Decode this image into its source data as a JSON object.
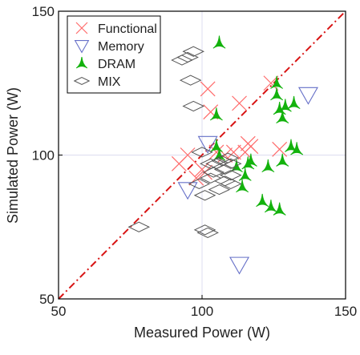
{
  "colors": {
    "functional": "#ff6b6b",
    "memory": "#6670c8",
    "dram": "#13b20d",
    "mix": "#555555",
    "diagonal": "#d81414",
    "grid": "#dcdcf0",
    "axis": "#000000"
  },
  "chart_data": {
    "type": "scatter",
    "xlabel": "Measured Power (W)",
    "ylabel": "Simulated Power (W)",
    "xlim": [
      50,
      150
    ],
    "ylim": [
      50,
      150
    ],
    "xticks": [
      "50",
      "100",
      "150"
    ],
    "yticks": [
      "50",
      "100",
      "150"
    ],
    "grid": true,
    "legend_position": "top-left",
    "reference_line": "y = x",
    "series": [
      {
        "name": "Functional",
        "marker": "x",
        "points": [
          [
            92,
            97
          ],
          [
            95,
            100
          ],
          [
            98,
            92
          ],
          [
            100,
            95
          ],
          [
            101,
            94
          ],
          [
            102,
            123
          ],
          [
            103,
            115
          ],
          [
            105,
            101
          ],
          [
            108,
            100
          ],
          [
            111,
            101
          ],
          [
            113,
            118
          ],
          [
            115,
            101
          ],
          [
            116,
            104
          ],
          [
            117,
            103
          ],
          [
            124,
            125
          ],
          [
            127,
            102
          ]
        ]
      },
      {
        "name": "Memory",
        "marker": "triangle-down",
        "points": [
          [
            95,
            88
          ],
          [
            102,
            104
          ],
          [
            113,
            62
          ],
          [
            137,
            121
          ]
        ]
      },
      {
        "name": "DRAM",
        "marker": "triangle-up",
        "points": [
          [
            106,
            139
          ],
          [
            105,
            114
          ],
          [
            105,
            103
          ],
          [
            106,
            100
          ],
          [
            112,
            96
          ],
          [
            114,
            89
          ],
          [
            115,
            93
          ],
          [
            116,
            97
          ],
          [
            117,
            98
          ],
          [
            121,
            84
          ],
          [
            123,
            96
          ],
          [
            124,
            82
          ],
          [
            126,
            125
          ],
          [
            126,
            121
          ],
          [
            127,
            81
          ],
          [
            127,
            116
          ],
          [
            128,
            98
          ],
          [
            128,
            113
          ],
          [
            129,
            117
          ],
          [
            131,
            103
          ],
          [
            132,
            118
          ],
          [
            133,
            102
          ]
        ]
      },
      {
        "name": "MIX",
        "marker": "diamond",
        "points": [
          [
            78,
            75
          ],
          [
            93,
            133
          ],
          [
            95,
            134
          ],
          [
            96,
            126
          ],
          [
            97,
            117
          ],
          [
            97,
            136
          ],
          [
            99,
            90
          ],
          [
            100,
            101
          ],
          [
            101,
            74
          ],
          [
            101,
            86
          ],
          [
            102,
            73
          ],
          [
            103,
            92
          ],
          [
            103,
            97
          ],
          [
            104,
            94
          ],
          [
            105,
            97
          ],
          [
            106,
            88
          ],
          [
            107,
            98
          ],
          [
            108,
            91
          ],
          [
            108,
            95
          ],
          [
            109,
            99
          ],
          [
            110,
            93
          ],
          [
            110,
            97
          ],
          [
            110,
            90
          ]
        ]
      }
    ]
  }
}
